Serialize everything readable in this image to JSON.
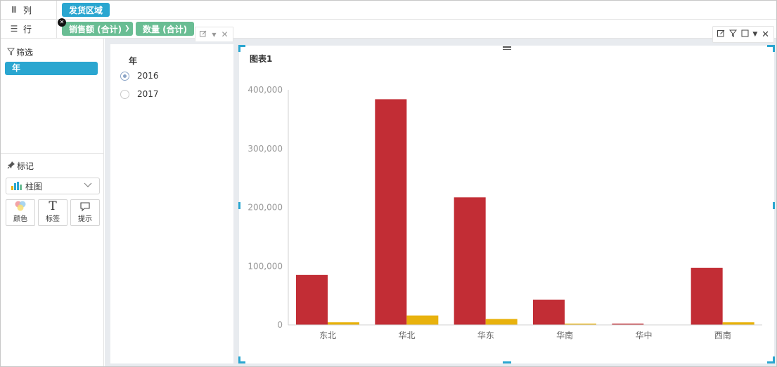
{
  "shelves": {
    "columns": {
      "label": "列",
      "icon": "columns-icon",
      "fields": [
        "发货区域"
      ]
    },
    "rows": {
      "label": "行",
      "icon": "rows-icon",
      "fields": [
        "销售额 (合计)",
        "数量 (合计)"
      ]
    }
  },
  "left_panel": {
    "filter": {
      "title": "筛选",
      "icon": "filter-icon",
      "items": [
        "年"
      ]
    },
    "marks": {
      "title": "标记",
      "icon": "pin-icon",
      "chart_type": "柱图",
      "buttons": {
        "color": "颜色",
        "label": "标签",
        "tooltip": "提示"
      }
    }
  },
  "year_filter": {
    "title": "年",
    "options": [
      {
        "label": "2016",
        "selected": true
      },
      {
        "label": "2017",
        "selected": false
      }
    ]
  },
  "colors": {
    "accent": "#2aa6d0",
    "green_pill": "#69bd93",
    "series_sales": "#c22d35",
    "series_qty": "#e8b20d"
  },
  "chart_data": {
    "type": "bar",
    "title": "图表1",
    "categories": [
      "东北",
      "华北",
      "华东",
      "华南",
      "华中",
      "西南"
    ],
    "series": [
      {
        "values": [
          85000,
          384000,
          217000,
          43000,
          2000,
          97000
        ]
      },
      {
        "values": [
          4500,
          16000,
          10000,
          2000,
          500,
          4500
        ]
      }
    ],
    "ylim": [
      0,
      400000
    ],
    "yticks": [
      "0",
      "100,000",
      "200,000",
      "300,000",
      "400,000"
    ],
    "grid": false
  }
}
